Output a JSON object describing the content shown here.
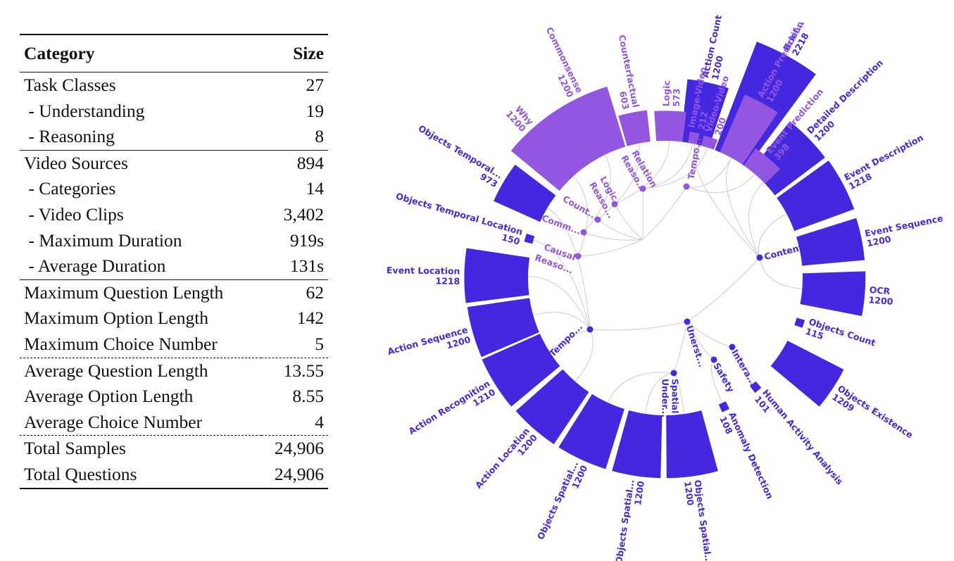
{
  "table": {
    "header": {
      "category": "Category",
      "size": "Size"
    },
    "groups": [
      {
        "rule": "none",
        "rows": [
          {
            "label": "Task Classes",
            "value": "27"
          },
          {
            "label": " - Understanding",
            "value": "19"
          },
          {
            "label": " - Reasoning",
            "value": "8"
          }
        ]
      },
      {
        "rule": "solid",
        "rows": [
          {
            "label": "Video Sources",
            "value": "894"
          },
          {
            "label": " - Categories",
            "value": "14"
          },
          {
            "label": " - Video Clips",
            "value": "3,402"
          },
          {
            "label": " - Maximum Duration",
            "value": "919s"
          },
          {
            "label": " - Average Duration",
            "value": "131s"
          }
        ]
      },
      {
        "rule": "solid",
        "rows": [
          {
            "label": "Maximum Question Length",
            "value": "62"
          },
          {
            "label": "Maximum Option Length",
            "value": "142"
          },
          {
            "label": "Maximum Choice Number",
            "value": "5"
          }
        ]
      },
      {
        "rule": "dash",
        "rows": [
          {
            "label": "Average Question Length",
            "value": "13.55"
          },
          {
            "label": "Average Option Length",
            "value": "8.55"
          },
          {
            "label": "Average Choice Number",
            "value": "4"
          }
        ]
      },
      {
        "rule": "dash",
        "rows": [
          {
            "label": "Total Samples",
            "value": "24,906"
          },
          {
            "label": "Total Questions",
            "value": "24,906"
          }
        ]
      }
    ]
  },
  "chart_data": {
    "type": "radial-bar",
    "colors": {
      "reasoning": "#9356E0",
      "understanding": "#4428E0",
      "link": "#cccccc"
    },
    "ylim": [
      0,
      2218
    ],
    "bars": [
      {
        "label": "Action Count",
        "value": 1200,
        "group": "understanding"
      },
      {
        "label": "Brief...",
        "value": 2218,
        "group": "understanding"
      },
      {
        "label": "Detailed Description",
        "value": 1200,
        "group": "understanding"
      },
      {
        "label": "Event Description",
        "value": 1218,
        "group": "understanding"
      },
      {
        "label": "Event Sequence",
        "value": 1200,
        "group": "understanding"
      },
      {
        "label": "OCR",
        "value": 1200,
        "group": "understanding"
      },
      {
        "label": "Objects Count",
        "value": 115,
        "group": "understanding"
      },
      {
        "label": "Objects Existence",
        "value": 1209,
        "group": "understanding"
      },
      {
        "label": "Human Activity Analysis",
        "value": 101,
        "group": "understanding"
      },
      {
        "label": "Anomaly Detection",
        "value": 108,
        "group": "understanding"
      },
      {
        "label": "Objects Spatial...",
        "value": 1200,
        "group": "understanding"
      },
      {
        "label": "Objects Spatial...",
        "value": 1200,
        "group": "understanding"
      },
      {
        "label": "Objects Spatial...",
        "value": 1200,
        "group": "understanding"
      },
      {
        "label": "Action Location",
        "value": 1200,
        "group": "understanding"
      },
      {
        "label": "Action Recognition",
        "value": 1210,
        "group": "understanding"
      },
      {
        "label": "Action Sequence",
        "value": 1200,
        "group": "understanding"
      },
      {
        "label": "Event Location",
        "value": 1218,
        "group": "understanding"
      },
      {
        "label": "Objects Temporal Location",
        "value": 150,
        "group": "understanding"
      },
      {
        "label": "Objects Temporal...",
        "value": 973,
        "group": "understanding"
      },
      {
        "label": "Why",
        "value": 1200,
        "group": "reasoning"
      },
      {
        "label": "Commonsense",
        "value": 1200,
        "group": "reasoning"
      },
      {
        "label": "Counterfactual",
        "value": 603,
        "group": "reasoning"
      },
      {
        "label": "Logic",
        "value": 573,
        "group": "reasoning"
      },
      {
        "label": "Image-Video",
        "value": 212,
        "group": "reasoning"
      },
      {
        "label": "Video-Video",
        "value": 200,
        "group": "reasoning"
      },
      {
        "label": "Action Prediction",
        "value": 1200,
        "group": "reasoning"
      },
      {
        "label": "Event Prediction",
        "value": 398,
        "group": "reasoning"
      }
    ],
    "nodes": [
      {
        "label": "Content Under...",
        "group": "understanding"
      },
      {
        "label": "Unerst...",
        "group": "understanding"
      },
      {
        "label": "Intera...",
        "group": "understanding"
      },
      {
        "label": "Safety",
        "group": "understanding"
      },
      {
        "label": "Spatial Under...",
        "group": "understanding"
      },
      {
        "label": "Tempo...",
        "group": "understanding"
      },
      {
        "label": "Tempo...",
        "group": "reasoning"
      },
      {
        "label": "Relation Reaso...",
        "group": "reasoning"
      },
      {
        "label": "Logic Reaso...",
        "group": "reasoning"
      },
      {
        "label": "Count...",
        "group": "reasoning"
      },
      {
        "label": "Comm...",
        "group": "reasoning"
      },
      {
        "label": "Causal Reaso...",
        "group": "reasoning"
      }
    ]
  }
}
